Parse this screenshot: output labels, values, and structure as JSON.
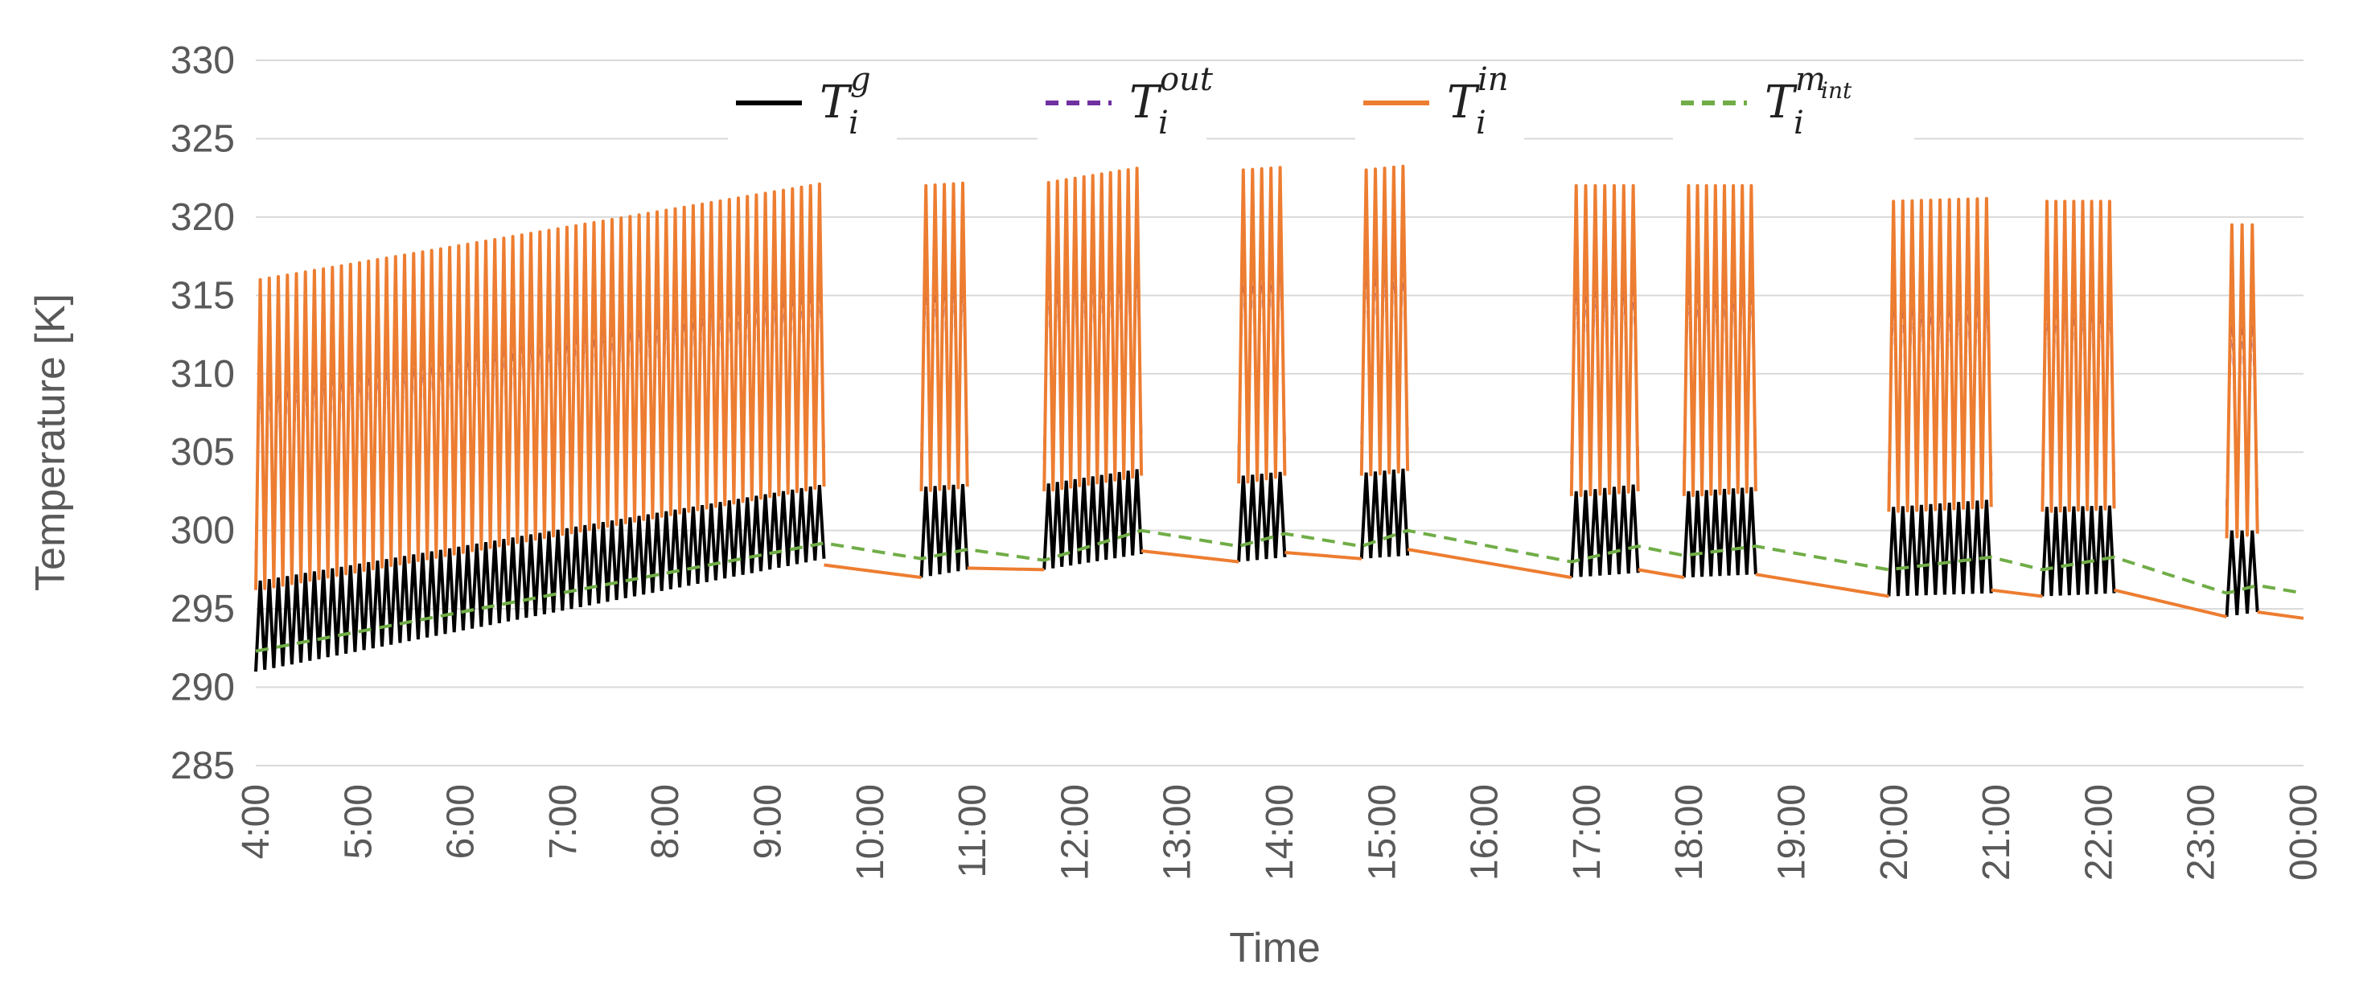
{
  "chart_data": {
    "type": "line",
    "title": "",
    "xlabel": "Time",
    "ylabel": "Temperature [K]",
    "ylim": [
      285,
      330
    ],
    "yticks": [
      285,
      290,
      295,
      300,
      305,
      310,
      315,
      320,
      325,
      330
    ],
    "xlim": [
      4,
      24
    ],
    "xtick_labels": [
      "4:00",
      "5:00",
      "6:00",
      "7:00",
      "8:00",
      "9:00",
      "10:00",
      "11:00",
      "12:00",
      "13:00",
      "14:00",
      "15:00",
      "16:00",
      "17:00",
      "18:00",
      "19:00",
      "20:00",
      "21:00",
      "22:00",
      "23:00",
      "00:00"
    ],
    "grid": "horizontal",
    "legend_position": "top",
    "series": [
      {
        "name": "T_i^g",
        "base": "T",
        "sup": "g",
        "sub": "i",
        "color": "#000000",
        "style": "solid"
      },
      {
        "name": "T_i^out",
        "base": "T",
        "sup": "out",
        "sub": "i",
        "color": "#7030A0",
        "style": "dashed"
      },
      {
        "name": "T_i^in",
        "base": "T",
        "sup": "in",
        "sub": "i",
        "color": "#ED7D31",
        "style": "solid"
      },
      {
        "name": "T_i^m_int",
        "base": "T",
        "sup": "m",
        "supsub": "int",
        "sub": "i",
        "color": "#70AD47",
        "style": "dashed"
      }
    ],
    "operating_blocks": [
      {
        "start": 4.0,
        "end": 9.55,
        "g_low_start": 291.0,
        "g_low_end": 298.2,
        "g_high_start": 296.8,
        "g_high_end": 303.0,
        "in_low_start": 296.2,
        "in_low_end": 302.8,
        "in_high_start": 316.0,
        "in_high_end": 322.2
      },
      {
        "start": 10.5,
        "end": 10.95,
        "g_low_start": 297.0,
        "g_low_end": 297.5,
        "g_high_start": 302.8,
        "g_high_end": 303.0,
        "in_low_start": 302.5,
        "in_low_end": 302.8,
        "in_high_start": 322.0,
        "in_high_end": 322.2
      },
      {
        "start": 11.7,
        "end": 12.65,
        "g_low_start": 297.5,
        "g_low_end": 298.5,
        "g_high_start": 303.0,
        "g_high_end": 304.0,
        "in_low_start": 302.5,
        "in_low_end": 303.5,
        "in_high_start": 322.2,
        "in_high_end": 323.2
      },
      {
        "start": 13.6,
        "end": 14.05,
        "g_low_start": 298.0,
        "g_low_end": 298.3,
        "g_high_start": 303.5,
        "g_high_end": 303.8,
        "in_low_start": 303.0,
        "in_low_end": 303.5,
        "in_high_start": 323.0,
        "in_high_end": 323.2
      },
      {
        "start": 14.8,
        "end": 15.25,
        "g_low_start": 298.2,
        "g_low_end": 298.4,
        "g_high_start": 303.7,
        "g_high_end": 304.0,
        "in_low_start": 303.5,
        "in_low_end": 303.8,
        "in_high_start": 323.0,
        "in_high_end": 323.3
      },
      {
        "start": 16.85,
        "end": 17.5,
        "g_low_start": 297.0,
        "g_low_end": 297.3,
        "g_high_start": 302.5,
        "g_high_end": 303.0,
        "in_low_start": 302.2,
        "in_low_end": 302.5,
        "in_high_start": 322.0,
        "in_high_end": 322.0
      },
      {
        "start": 17.95,
        "end": 18.65,
        "g_low_start": 297.0,
        "g_low_end": 297.2,
        "g_high_start": 302.5,
        "g_high_end": 302.8,
        "in_low_start": 302.2,
        "in_low_end": 302.5,
        "in_high_start": 322.0,
        "in_high_end": 322.0
      },
      {
        "start": 19.95,
        "end": 20.95,
        "g_low_start": 295.8,
        "g_low_end": 296.0,
        "g_high_start": 301.5,
        "g_high_end": 302.0,
        "in_low_start": 301.2,
        "in_low_end": 301.5,
        "in_high_start": 321.0,
        "in_high_end": 321.2
      },
      {
        "start": 21.45,
        "end": 22.15,
        "g_low_start": 295.8,
        "g_low_end": 296.0,
        "g_high_start": 301.5,
        "g_high_end": 301.6,
        "in_low_start": 301.2,
        "in_low_end": 301.4,
        "in_high_start": 321.0,
        "in_high_end": 321.0
      },
      {
        "start": 23.25,
        "end": 23.55,
        "g_low_start": 294.5,
        "g_low_end": 294.8,
        "g_high_start": 300.0,
        "g_high_end": 300.0,
        "in_low_start": 299.5,
        "in_low_end": 299.8,
        "in_high_start": 319.5,
        "in_high_end": 319.5
      }
    ],
    "idle_segments": [
      {
        "x": [
          9.55,
          10.5
        ],
        "y": [
          297.8,
          297.0
        ]
      },
      {
        "x": [
          10.95,
          11.7
        ],
        "y": [
          297.6,
          297.5
        ]
      },
      {
        "x": [
          12.65,
          13.6
        ],
        "y": [
          298.7,
          298.0
        ]
      },
      {
        "x": [
          14.05,
          14.8
        ],
        "y": [
          298.6,
          298.2
        ]
      },
      {
        "x": [
          15.25,
          16.85
        ],
        "y": [
          298.8,
          297.0
        ]
      },
      {
        "x": [
          17.5,
          17.95
        ],
        "y": [
          297.5,
          297.0
        ]
      },
      {
        "x": [
          18.65,
          19.95
        ],
        "y": [
          297.2,
          295.8
        ]
      },
      {
        "x": [
          20.95,
          21.45
        ],
        "y": [
          296.2,
          295.8
        ]
      },
      {
        "x": [
          22.15,
          23.25
        ],
        "y": [
          296.2,
          294.5
        ]
      },
      {
        "x": [
          23.55,
          24.0
        ],
        "y": [
          294.8,
          294.4
        ]
      }
    ],
    "m_int": {
      "x": [
        4.0,
        9.55,
        10.5,
        10.95,
        11.7,
        12.65,
        13.6,
        14.05,
        14.8,
        15.25,
        16.85,
        17.5,
        17.95,
        18.65,
        19.95,
        20.95,
        21.45,
        22.15,
        23.25,
        23.55,
        24.0
      ],
      "y": [
        292.3,
        299.2,
        298.2,
        298.8,
        298.1,
        300.0,
        299.0,
        299.8,
        299.0,
        300.0,
        298.0,
        299.0,
        298.4,
        299.0,
        297.5,
        298.3,
        297.5,
        298.3,
        296.0,
        296.5,
        296.0
      ]
    }
  }
}
